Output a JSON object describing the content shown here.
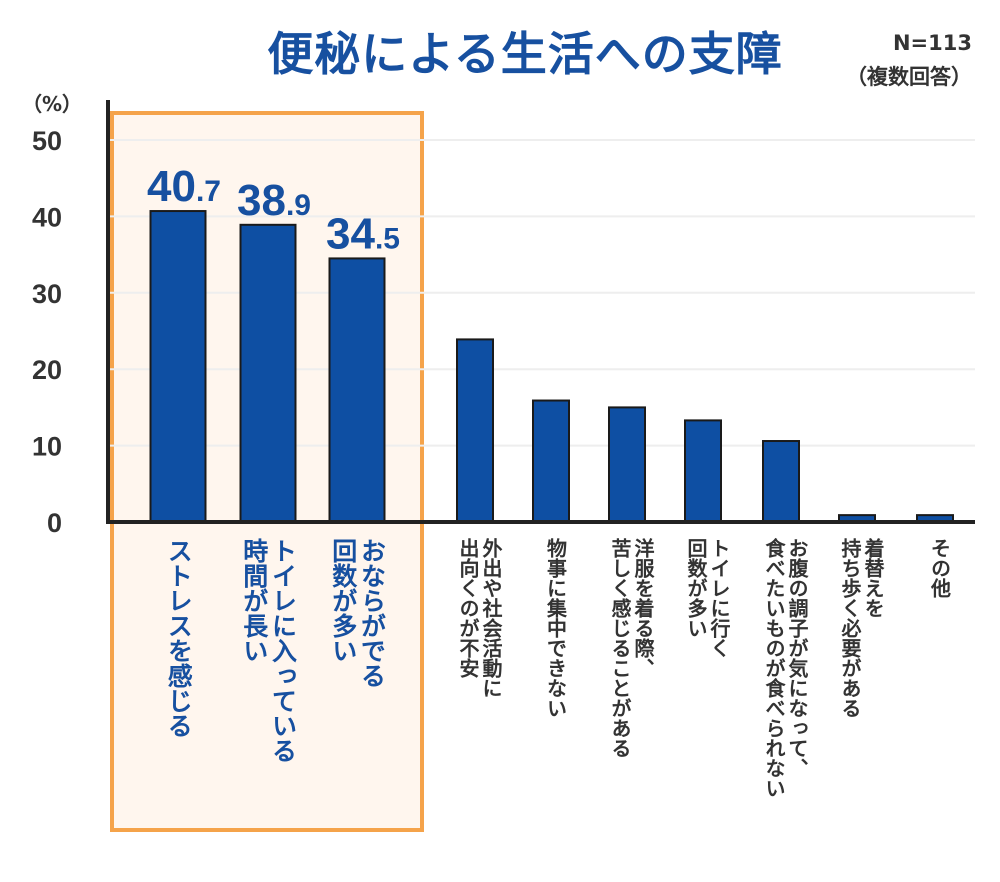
{
  "chart_data": {
    "type": "bar",
    "title": "便秘による生活への支障",
    "note_n": "N=113",
    "note_answer": "（複数回答）",
    "ylabel": "（%）",
    "ylim": [
      0,
      50
    ],
    "yticks": [
      0,
      10,
      20,
      30,
      40,
      50
    ],
    "grid": true,
    "categories": [
      "ストレスを感じる",
      "トイレに入っている\n時間が長い",
      "おならがでる\n回数が多い",
      "外出や社会活動に\n出向くのが不安",
      "物事に集中できない",
      "洋服を着る際、\n苦しく感じることがある",
      "トイレに行く\n回数が多い",
      "お腹の調子が気になって、\n食べたいものが食べられない",
      "着替えを\n持ち歩く必要がある",
      "その他"
    ],
    "values": [
      40.7,
      38.9,
      34.5,
      23.9,
      15.9,
      15.0,
      13.3,
      10.6,
      0.9,
      0.9
    ],
    "data_labels": [
      {
        "int": "40",
        "dec": ".7"
      },
      {
        "int": "38",
        "dec": ".9"
      },
      {
        "int": "34",
        "dec": ".5"
      }
    ],
    "highlighted_categories": 3,
    "colors": {
      "bar": "#0E4FA3",
      "title": "#1750A0",
      "highlight_border": "#F5A34A",
      "highlight_fill": "#FFF6EE",
      "text": "#333333"
    }
  }
}
